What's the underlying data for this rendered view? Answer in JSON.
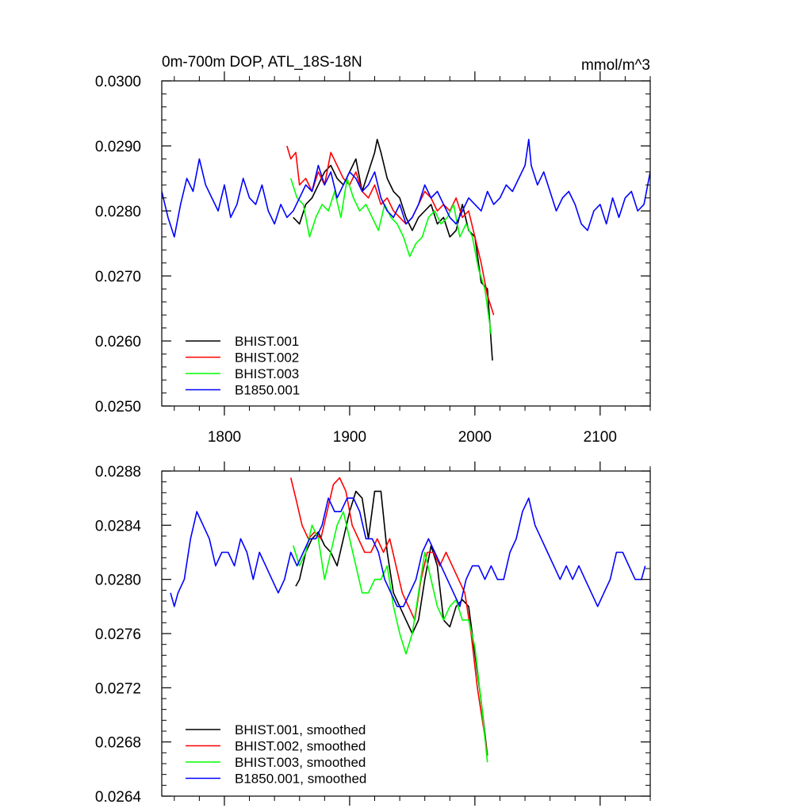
{
  "chart_data": [
    {
      "type": "line",
      "title": "0m-700m DOP, ATL_18S-18N",
      "units": "mmol/m^3",
      "xlim": [
        1750,
        2140
      ],
      "ylim": [
        0.025,
        0.03
      ],
      "xticks": [
        1800,
        1900,
        2000,
        2100
      ],
      "xtick_labels": [
        "1800",
        "1900",
        "2000",
        "2100"
      ],
      "yticks": [
        0.025,
        0.026,
        0.027,
        0.028,
        0.029,
        0.03
      ],
      "ytick_labels": [
        "0.0250",
        "0.0260",
        "0.0270",
        "0.0280",
        "0.0290",
        "0.0300"
      ],
      "legend_position": "bottom-left",
      "series": [
        {
          "name": "BHIST.001",
          "color": "#000000",
          "x": [
            1855,
            1860,
            1865,
            1870,
            1875,
            1880,
            1885,
            1890,
            1895,
            1900,
            1905,
            1910,
            1915,
            1920,
            1922,
            1925,
            1930,
            1935,
            1940,
            1945,
            1950,
            1955,
            1960,
            1965,
            1970,
            1975,
            1980,
            1985,
            1990,
            1995,
            2000,
            2005,
            2010,
            2014
          ],
          "y": [
            0.0279,
            0.0278,
            0.0281,
            0.0282,
            0.0284,
            0.0286,
            0.0287,
            0.0285,
            0.0284,
            0.0286,
            0.0288,
            0.0283,
            0.0286,
            0.0289,
            0.0291,
            0.0289,
            0.0285,
            0.0283,
            0.0282,
            0.0279,
            0.0277,
            0.0279,
            0.028,
            0.0281,
            0.0278,
            0.0279,
            0.0276,
            0.0277,
            0.0281,
            0.0277,
            0.0276,
            0.0269,
            0.0268,
            0.0257
          ]
        },
        {
          "name": "BHIST.002",
          "color": "#ff0000",
          "x": [
            1850,
            1853,
            1857,
            1860,
            1865,
            1870,
            1875,
            1880,
            1885,
            1890,
            1895,
            1900,
            1905,
            1910,
            1915,
            1920,
            1925,
            1930,
            1935,
            1940,
            1945,
            1950,
            1955,
            1960,
            1965,
            1970,
            1975,
            1980,
            1985,
            1990,
            1995,
            2000,
            2005,
            2010,
            2015
          ],
          "y": [
            0.029,
            0.0288,
            0.0289,
            0.0284,
            0.0285,
            0.0283,
            0.0286,
            0.0284,
            0.0289,
            0.0287,
            0.0285,
            0.0284,
            0.0286,
            0.0283,
            0.0282,
            0.0284,
            0.0281,
            0.0282,
            0.028,
            0.0279,
            0.0278,
            0.0279,
            0.0281,
            0.0283,
            0.0282,
            0.028,
            0.0281,
            0.028,
            0.0282,
            0.0279,
            0.028,
            0.0276,
            0.0272,
            0.0267,
            0.0264
          ]
        },
        {
          "name": "BHIST.003",
          "color": "#00ff00",
          "x": [
            1853,
            1858,
            1863,
            1868,
            1873,
            1878,
            1883,
            1888,
            1893,
            1898,
            1903,
            1908,
            1913,
            1918,
            1923,
            1928,
            1933,
            1938,
            1943,
            1948,
            1953,
            1958,
            1963,
            1968,
            1973,
            1978,
            1983,
            1988,
            1993,
            1998,
            2003,
            2008,
            2013
          ],
          "y": [
            0.0285,
            0.0282,
            0.0281,
            0.0276,
            0.0279,
            0.0281,
            0.028,
            0.0283,
            0.0279,
            0.0285,
            0.0282,
            0.028,
            0.0281,
            0.0279,
            0.0277,
            0.0281,
            0.0279,
            0.0278,
            0.0276,
            0.0273,
            0.0275,
            0.0276,
            0.0279,
            0.028,
            0.0278,
            0.0279,
            0.0281,
            0.0276,
            0.0278,
            0.0276,
            0.0271,
            0.0268,
            0.0261
          ]
        },
        {
          "name": "B1850.001",
          "color": "#0000ff",
          "x": [
            1750,
            1755,
            1760,
            1765,
            1770,
            1775,
            1780,
            1785,
            1790,
            1795,
            1800,
            1805,
            1810,
            1815,
            1820,
            1825,
            1830,
            1835,
            1840,
            1845,
            1850,
            1855,
            1860,
            1865,
            1870,
            1875,
            1880,
            1885,
            1890,
            1895,
            1900,
            1905,
            1910,
            1915,
            1920,
            1925,
            1930,
            1935,
            1940,
            1945,
            1950,
            1955,
            1960,
            1965,
            1970,
            1975,
            1980,
            1985,
            1990,
            1995,
            2000,
            2005,
            2010,
            2015,
            2020,
            2025,
            2030,
            2035,
            2040,
            2043,
            2045,
            2050,
            2055,
            2060,
            2065,
            2070,
            2075,
            2080,
            2085,
            2090,
            2095,
            2100,
            2105,
            2110,
            2115,
            2120,
            2125,
            2130,
            2135,
            2140
          ],
          "y": [
            0.0283,
            0.0279,
            0.0276,
            0.0281,
            0.0285,
            0.0283,
            0.0288,
            0.0284,
            0.0282,
            0.028,
            0.0284,
            0.0279,
            0.0281,
            0.0285,
            0.0282,
            0.0281,
            0.0284,
            0.028,
            0.0278,
            0.0281,
            0.0279,
            0.028,
            0.0282,
            0.0284,
            0.0283,
            0.0287,
            0.0284,
            0.0286,
            0.0282,
            0.0284,
            0.0286,
            0.0285,
            0.0283,
            0.0284,
            0.0286,
            0.0282,
            0.028,
            0.0279,
            0.0281,
            0.0278,
            0.0279,
            0.0281,
            0.0284,
            0.0282,
            0.0283,
            0.0281,
            0.0279,
            0.0278,
            0.028,
            0.0282,
            0.0281,
            0.028,
            0.0283,
            0.0281,
            0.0282,
            0.0284,
            0.0283,
            0.0285,
            0.0287,
            0.0291,
            0.0287,
            0.0284,
            0.0286,
            0.0283,
            0.028,
            0.0282,
            0.0283,
            0.0281,
            0.0278,
            0.0277,
            0.028,
            0.0281,
            0.0278,
            0.0282,
            0.0279,
            0.0282,
            0.0283,
            0.028,
            0.0281,
            0.0286
          ]
        }
      ]
    },
    {
      "type": "line",
      "title": "",
      "xlim": [
        1750,
        2140
      ],
      "ylim": [
        0.0264,
        0.0288
      ],
      "xticks": [
        1800,
        1900,
        2000,
        2100
      ],
      "xtick_labels": [],
      "yticks": [
        0.0264,
        0.0268,
        0.0272,
        0.0276,
        0.028,
        0.0284,
        0.0288
      ],
      "ytick_labels": [
        "0.0264",
        "0.0268",
        "0.0272",
        "0.0276",
        "0.0280",
        "0.0284",
        "0.0288"
      ],
      "legend_position": "bottom-left",
      "series": [
        {
          "name": "BHIST.001, smoothed",
          "color": "#000000",
          "x": [
            1857,
            1860,
            1865,
            1870,
            1875,
            1880,
            1885,
            1890,
            1895,
            1900,
            1905,
            1910,
            1915,
            1920,
            1925,
            1930,
            1935,
            1940,
            1945,
            1950,
            1955,
            1960,
            1965,
            1970,
            1975,
            1980,
            1985,
            1990,
            1995,
            2000,
            2005,
            2010
          ],
          "y": [
            0.02795,
            0.028,
            0.0282,
            0.0283,
            0.02835,
            0.02825,
            0.0282,
            0.0281,
            0.0283,
            0.0285,
            0.02865,
            0.0286,
            0.0283,
            0.02865,
            0.02865,
            0.0282,
            0.0279,
            0.0278,
            0.0277,
            0.0276,
            0.0277,
            0.028,
            0.02825,
            0.0281,
            0.0277,
            0.02765,
            0.0278,
            0.02785,
            0.0278,
            0.02745,
            0.0271,
            0.0267
          ]
        },
        {
          "name": "BHIST.002, smoothed",
          "color": "#ff0000",
          "x": [
            1853,
            1857,
            1862,
            1867,
            1872,
            1877,
            1882,
            1887,
            1892,
            1897,
            1902,
            1907,
            1912,
            1917,
            1922,
            1927,
            1932,
            1937,
            1942,
            1947,
            1952,
            1957,
            1962,
            1967,
            1972,
            1977,
            1982,
            1987,
            1992,
            1997,
            2002,
            2007,
            2010
          ],
          "y": [
            0.02875,
            0.0286,
            0.0284,
            0.0283,
            0.02835,
            0.0283,
            0.0285,
            0.0287,
            0.02875,
            0.02865,
            0.0284,
            0.0283,
            0.0282,
            0.0282,
            0.0283,
            0.0282,
            0.0283,
            0.0281,
            0.0279,
            0.0278,
            0.0277,
            0.028,
            0.0282,
            0.0282,
            0.0281,
            0.0282,
            0.0281,
            0.028,
            0.0279,
            0.0276,
            0.0272,
            0.0269,
            0.0267
          ]
        },
        {
          "name": "BHIST.003, smoothed",
          "color": "#00ff00",
          "x": [
            1855,
            1860,
            1865,
            1870,
            1875,
            1880,
            1885,
            1890,
            1895,
            1900,
            1905,
            1910,
            1915,
            1920,
            1925,
            1930,
            1935,
            1940,
            1945,
            1950,
            1955,
            1960,
            1965,
            1970,
            1975,
            1980,
            1985,
            1990,
            1995,
            2000,
            2005,
            2010
          ],
          "y": [
            0.02825,
            0.0281,
            0.0282,
            0.0284,
            0.0283,
            0.028,
            0.0282,
            0.0284,
            0.0285,
            0.0283,
            0.0281,
            0.0279,
            0.0279,
            0.028,
            0.028,
            0.0281,
            0.0278,
            0.0276,
            0.02745,
            0.0276,
            0.0279,
            0.0282,
            0.028,
            0.0278,
            0.0277,
            0.0278,
            0.02785,
            0.0277,
            0.0277,
            0.0275,
            0.0271,
            0.02665
          ]
        },
        {
          "name": "B1850.001, smoothed",
          "color": "#0000ff",
          "x": [
            1757,
            1760,
            1763,
            1768,
            1773,
            1778,
            1783,
            1788,
            1793,
            1798,
            1803,
            1808,
            1813,
            1818,
            1823,
            1828,
            1833,
            1838,
            1843,
            1848,
            1853,
            1858,
            1863,
            1868,
            1873,
            1878,
            1883,
            1888,
            1893,
            1898,
            1903,
            1908,
            1913,
            1918,
            1923,
            1928,
            1933,
            1938,
            1943,
            1948,
            1953,
            1958,
            1963,
            1968,
            1973,
            1978,
            1983,
            1988,
            1993,
            1998,
            2003,
            2008,
            2013,
            2018,
            2023,
            2028,
            2033,
            2038,
            2043,
            2048,
            2053,
            2058,
            2063,
            2068,
            2073,
            2078,
            2083,
            2088,
            2093,
            2098,
            2103,
            2108,
            2113,
            2118,
            2123,
            2128,
            2133,
            2136
          ],
          "y": [
            0.0279,
            0.0278,
            0.0279,
            0.028,
            0.0283,
            0.0285,
            0.0284,
            0.0283,
            0.0281,
            0.0282,
            0.0282,
            0.0281,
            0.0283,
            0.0282,
            0.028,
            0.0282,
            0.0281,
            0.028,
            0.0279,
            0.028,
            0.0282,
            0.0281,
            0.0282,
            0.0283,
            0.0283,
            0.0284,
            0.0286,
            0.0285,
            0.0285,
            0.0286,
            0.0286,
            0.0285,
            0.0283,
            0.0283,
            0.0282,
            0.028,
            0.0279,
            0.0278,
            0.0278,
            0.0279,
            0.028,
            0.0282,
            0.0283,
            0.0282,
            0.0281,
            0.028,
            0.0279,
            0.0278,
            0.028,
            0.0281,
            0.0281,
            0.028,
            0.0281,
            0.028,
            0.028,
            0.0282,
            0.0283,
            0.0285,
            0.0286,
            0.0284,
            0.0283,
            0.0282,
            0.0281,
            0.028,
            0.0281,
            0.028,
            0.0281,
            0.028,
            0.0279,
            0.0278,
            0.0279,
            0.028,
            0.0282,
            0.0282,
            0.0281,
            0.028,
            0.028,
            0.0281
          ]
        }
      ]
    }
  ]
}
